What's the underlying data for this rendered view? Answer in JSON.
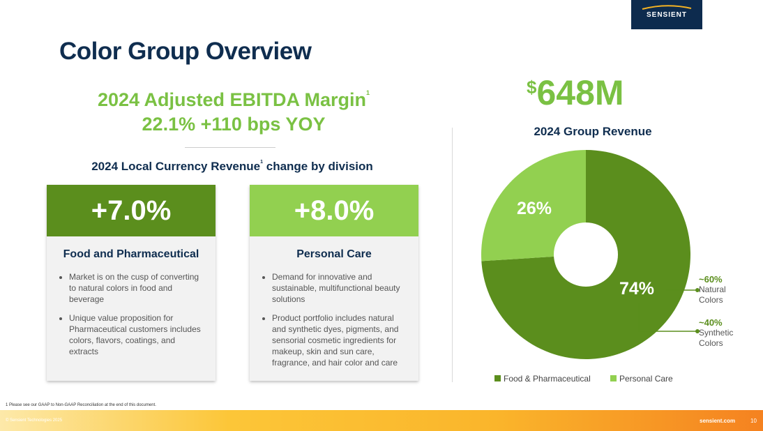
{
  "logo": {
    "text": "SENSIENT"
  },
  "page": {
    "title": "Color Group Overview",
    "ebitda_line1": "2024 Adjusted EBITDA Margin",
    "ebitda_sup": "1",
    "ebitda_line2": "22.1% +110 bps YOY",
    "subtitle_a": "2024 Local Currency Revenue",
    "subtitle_sup": "1",
    "subtitle_b": " change by division"
  },
  "cards": [
    {
      "value": "+7.0%",
      "title": "Food and Pharmaceutical",
      "bullets": [
        "Market is on the cusp of converting to natural colors in food and beverage",
        "Unique value proposition for Pharmaceutical customers includes colors, flavors, coatings, and extracts"
      ]
    },
    {
      "value": "+8.0%",
      "title": "Personal Care",
      "bullets": [
        "Demand for innovative and sustainable, multifunctional beauty solutions",
        "Product portfolio includes natural and synthetic dyes, pigments, and sensorial cosmetic ingredients for makeup, skin and sun care, fragrance, and hair color and care"
      ]
    }
  ],
  "revenue": {
    "dollar": "$",
    "amount": "648M",
    "chart_title": "2024 Group Revenue"
  },
  "chart_data": {
    "type": "pie",
    "title": "2024 Group Revenue",
    "categories": [
      "Food & Pharmaceutical",
      "Personal Care"
    ],
    "values": [
      74,
      26
    ],
    "labels": [
      "74%",
      "26%"
    ],
    "colors": [
      "#5b8e1d",
      "#92d050"
    ],
    "annotations": [
      {
        "pct": "~60%",
        "label": "Natural Colors"
      },
      {
        "pct": "~40%",
        "label": "Synthetic Colors"
      }
    ]
  },
  "footer": {
    "footnote": "1 Please see our GAAP to Non-GAAP Reconciliation at the end of this document.",
    "copyright": "© Sensient Technologies 2025",
    "site": "sensient.com",
    "page_num": "10"
  },
  "colors": {
    "navy": "#0f2d4f",
    "green_dark": "#5b8e1d",
    "green_light": "#92d050",
    "green_text": "#7ac143"
  }
}
